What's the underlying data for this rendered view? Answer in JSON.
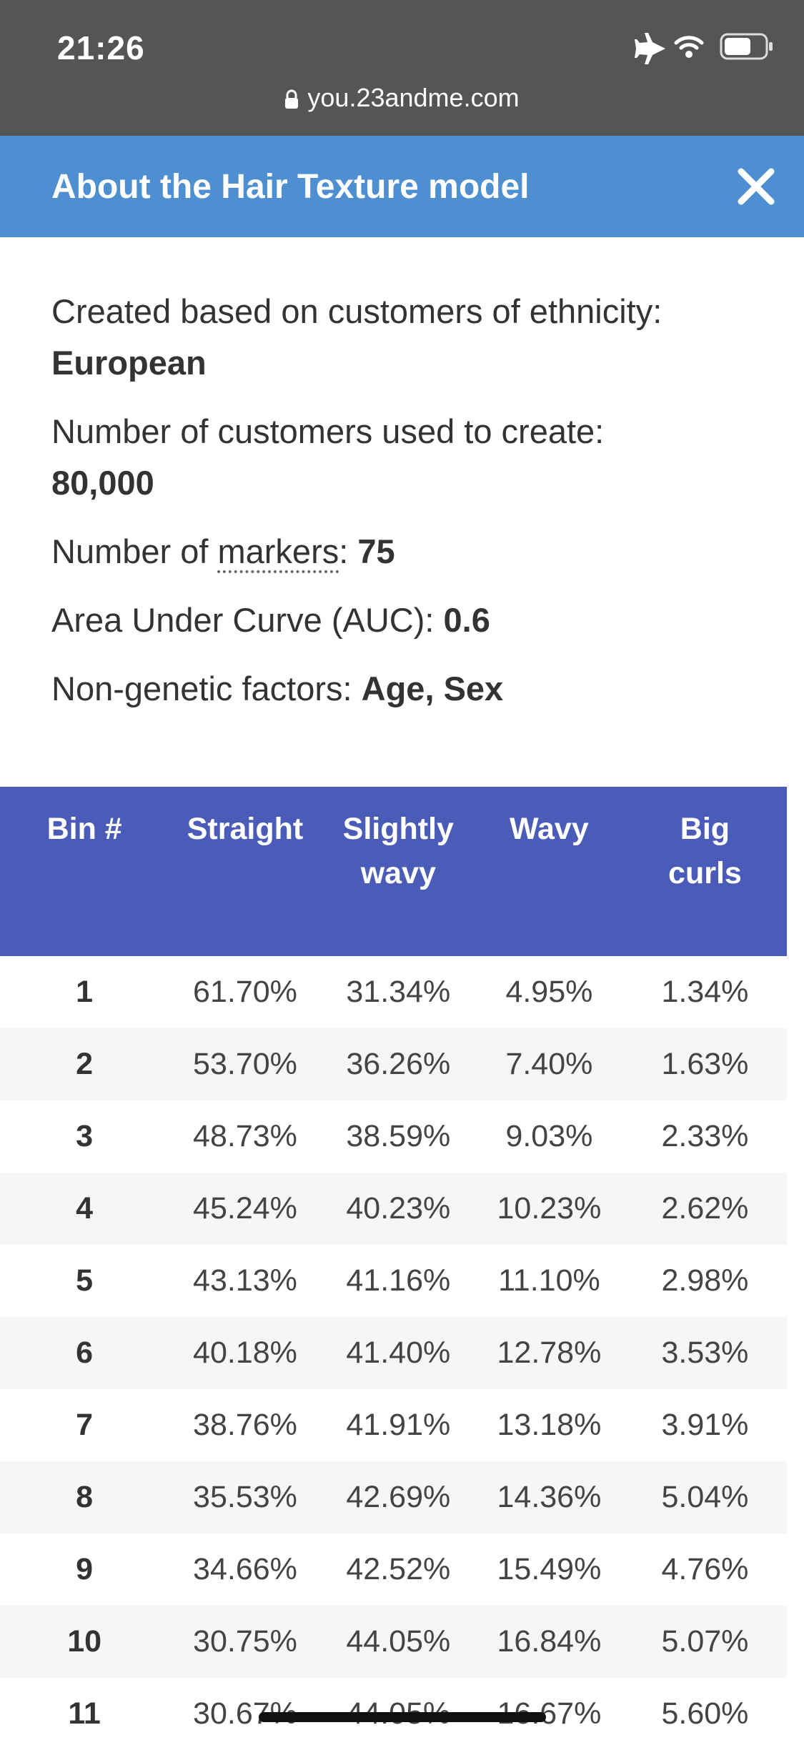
{
  "status_bar": {
    "time": "21:26",
    "icons": [
      "airplane-icon",
      "wifi-icon",
      "battery-icon"
    ],
    "url": "you.23andme.com"
  },
  "modal": {
    "title": "About the Hair Texture model",
    "close_icon": "close-icon"
  },
  "info": {
    "ethnicity_label": "Created based on customers of ethnicity:",
    "ethnicity_value": "European",
    "customers_label": "Number of customers used to create:",
    "customers_value": "80,000",
    "markers_label_prefix": "Number of ",
    "markers_link": "markers",
    "markers_label_suffix": ": ",
    "markers_value": "75",
    "auc_label": "Area Under Curve (AUC): ",
    "auc_value": "0.6",
    "factors_label": "Non-genetic factors: ",
    "factors_value": "Age, Sex"
  },
  "table": {
    "headers": {
      "bin": "Bin #",
      "straight": "Straight",
      "slightly_wavy": "Slightly wavy",
      "wavy": "Wavy",
      "big_curls": "Big curls"
    },
    "rows": [
      [
        "1",
        "61.70%",
        "31.34%",
        "4.95%",
        "1.34%"
      ],
      [
        "2",
        "53.70%",
        "36.26%",
        "7.40%",
        "1.63%"
      ],
      [
        "3",
        "48.73%",
        "38.59%",
        "9.03%",
        "2.33%"
      ],
      [
        "4",
        "45.24%",
        "40.23%",
        "10.23%",
        "2.62%"
      ],
      [
        "5",
        "43.13%",
        "41.16%",
        "11.10%",
        "2.98%"
      ],
      [
        "6",
        "40.18%",
        "41.40%",
        "12.78%",
        "3.53%"
      ],
      [
        "7",
        "38.76%",
        "41.91%",
        "13.18%",
        "3.91%"
      ],
      [
        "8",
        "35.53%",
        "42.69%",
        "14.36%",
        "5.04%"
      ],
      [
        "9",
        "34.66%",
        "42.52%",
        "15.49%",
        "4.76%"
      ],
      [
        "10",
        "30.75%",
        "44.05%",
        "16.84%",
        "5.07%"
      ],
      [
        "11",
        "30.67%",
        "44.05%",
        "16.67%",
        "5.60%"
      ]
    ]
  },
  "colors": {
    "status_bar": "#555555",
    "modal_header": "#4d8fd1",
    "table_header": "#4a5bb8",
    "row_alt": "#f5f6f8"
  }
}
